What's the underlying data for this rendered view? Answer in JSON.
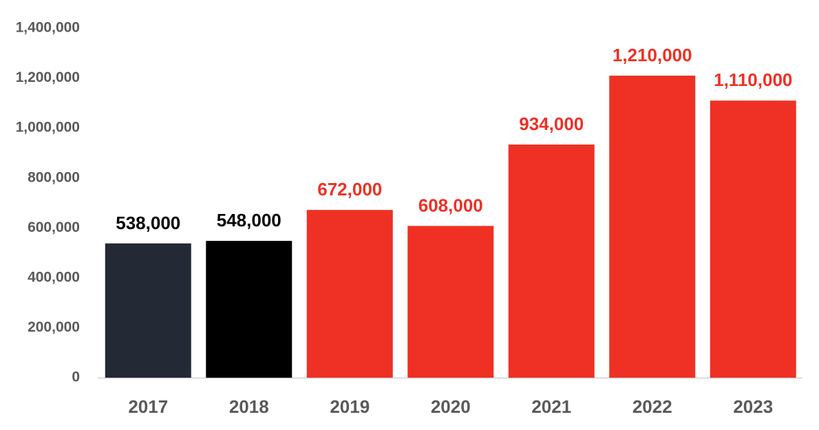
{
  "chart_data": {
    "type": "bar",
    "title": "",
    "xlabel": "",
    "ylabel": "",
    "categories": [
      "2017",
      "2018",
      "2019",
      "2020",
      "2021",
      "2022",
      "2023"
    ],
    "values": [
      538000,
      548000,
      672000,
      608000,
      934000,
      1210000,
      1110000
    ],
    "value_labels": [
      "538,000",
      "548,000",
      "672,000",
      "608,000",
      "934,000",
      "1,210,000",
      "1,110,000"
    ],
    "bar_colors": [
      "#232a35",
      "#000000",
      "#ee3124",
      "#ee3124",
      "#ee3124",
      "#ee3124",
      "#ee3124"
    ],
    "label_colors": [
      "#000000",
      "#000000",
      "#ee3124",
      "#ee3124",
      "#ee3124",
      "#ee3124",
      "#ee3124"
    ],
    "ylim": [
      0,
      1400000
    ],
    "yticks": [
      0,
      200000,
      400000,
      600000,
      800000,
      1000000,
      1200000,
      1400000
    ],
    "ytick_labels": [
      "0",
      "200,000",
      "400,000",
      "600,000",
      "800,000",
      "1,000,000",
      "1,200,000",
      "1,400,000"
    ],
    "grid": false,
    "legend": "none",
    "tick_color": "#595959",
    "axis_color": "#d9d9d9"
  }
}
